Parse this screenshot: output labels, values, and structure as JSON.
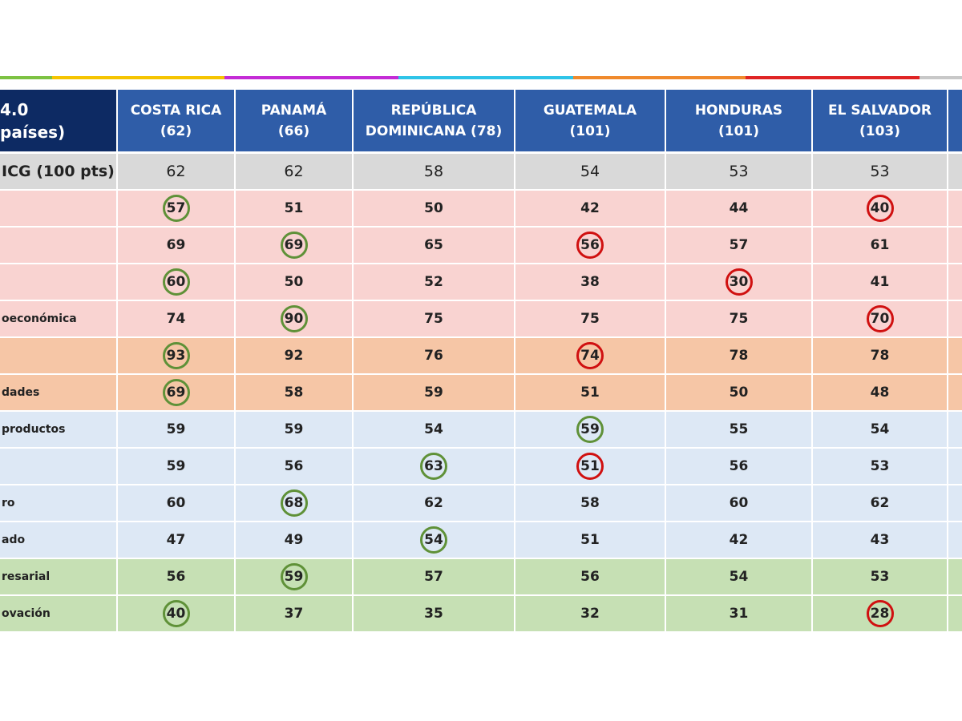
{
  "stripe": [
    "#7cc242",
    "#f5c400",
    "#c42bd6",
    "#2ec4e8",
    "#f08a2c",
    "#e02424",
    "#c8c8c8"
  ],
  "table": {
    "corner": [
      "4.0",
      "países)"
    ],
    "header_color": "#2f5da8",
    "columns": [
      [
        "COSTA RICA",
        "(62)"
      ],
      [
        "PANAMÁ",
        "(66)"
      ],
      [
        "REPÚBLICA",
        "DOMINICANA (78)"
      ],
      [
        "GUATEMALA",
        "(101)"
      ],
      [
        "HONDURAS",
        "(101)"
      ],
      [
        "EL SALVADOR",
        "(103)"
      ]
    ],
    "rows": [
      {
        "label": "ICG (100 pts)",
        "color": "#d9d9d9",
        "values": [
          62,
          62,
          58,
          54,
          53,
          53
        ],
        "circles": []
      },
      {
        "label": "",
        "color": "#f9d3d1",
        "values": [
          57,
          51,
          50,
          42,
          44,
          40
        ],
        "circles": [
          {
            "col": 0,
            "color": "#5f9138"
          },
          {
            "col": 5,
            "color": "#d01010"
          }
        ]
      },
      {
        "label": "",
        "color": "#f9d3d1",
        "values": [
          69,
          69,
          65,
          56,
          57,
          61
        ],
        "circles": [
          {
            "col": 1,
            "color": "#5f9138"
          },
          {
            "col": 3,
            "color": "#d01010"
          }
        ]
      },
      {
        "label": "",
        "color": "#f9d3d1",
        "values": [
          60,
          50,
          52,
          38,
          30,
          41
        ],
        "circles": [
          {
            "col": 0,
            "color": "#5f9138"
          },
          {
            "col": 4,
            "color": "#d01010"
          }
        ]
      },
      {
        "label": "oeconómica",
        "color": "#f9d3d1",
        "values": [
          74,
          90,
          75,
          75,
          75,
          70
        ],
        "circles": [
          {
            "col": 1,
            "color": "#5f9138"
          },
          {
            "col": 5,
            "color": "#d01010"
          }
        ]
      },
      {
        "label": "",
        "color": "#f6c6a6",
        "values": [
          93,
          92,
          76,
          74,
          78,
          78
        ],
        "circles": [
          {
            "col": 0,
            "color": "#5f9138"
          },
          {
            "col": 3,
            "color": "#d01010"
          }
        ]
      },
      {
        "label": "dades",
        "color": "#f6c6a6",
        "values": [
          69,
          58,
          59,
          51,
          50,
          48
        ],
        "circles": [
          {
            "col": 0,
            "color": "#5f9138"
          }
        ]
      },
      {
        "label": "productos",
        "color": "#dde8f5",
        "values": [
          59,
          59,
          54,
          59,
          55,
          54
        ],
        "circles": [
          {
            "col": 3,
            "color": "#5f9138"
          }
        ]
      },
      {
        "label": "",
        "color": "#dde8f5",
        "values": [
          59,
          56,
          63,
          51,
          56,
          53
        ],
        "circles": [
          {
            "col": 2,
            "color": "#5f9138"
          },
          {
            "col": 3,
            "color": "#d01010"
          }
        ]
      },
      {
        "label": "ro",
        "color": "#dde8f5",
        "values": [
          60,
          68,
          62,
          58,
          60,
          62
        ],
        "circles": [
          {
            "col": 1,
            "color": "#5f9138"
          }
        ]
      },
      {
        "label": "ado",
        "color": "#dde8f5",
        "values": [
          47,
          49,
          54,
          51,
          42,
          43
        ],
        "circles": [
          {
            "col": 2,
            "color": "#5f9138"
          }
        ]
      },
      {
        "label": "resarial",
        "color": "#c6e0b4",
        "values": [
          56,
          59,
          57,
          56,
          54,
          53
        ],
        "circles": [
          {
            "col": 1,
            "color": "#5f9138"
          }
        ]
      },
      {
        "label": "ovación",
        "color": "#c6e0b4",
        "values": [
          40,
          37,
          35,
          32,
          31,
          28
        ],
        "circles": [
          {
            "col": 0,
            "color": "#5f9138"
          },
          {
            "col": 5,
            "color": "#d01010"
          }
        ]
      }
    ]
  }
}
